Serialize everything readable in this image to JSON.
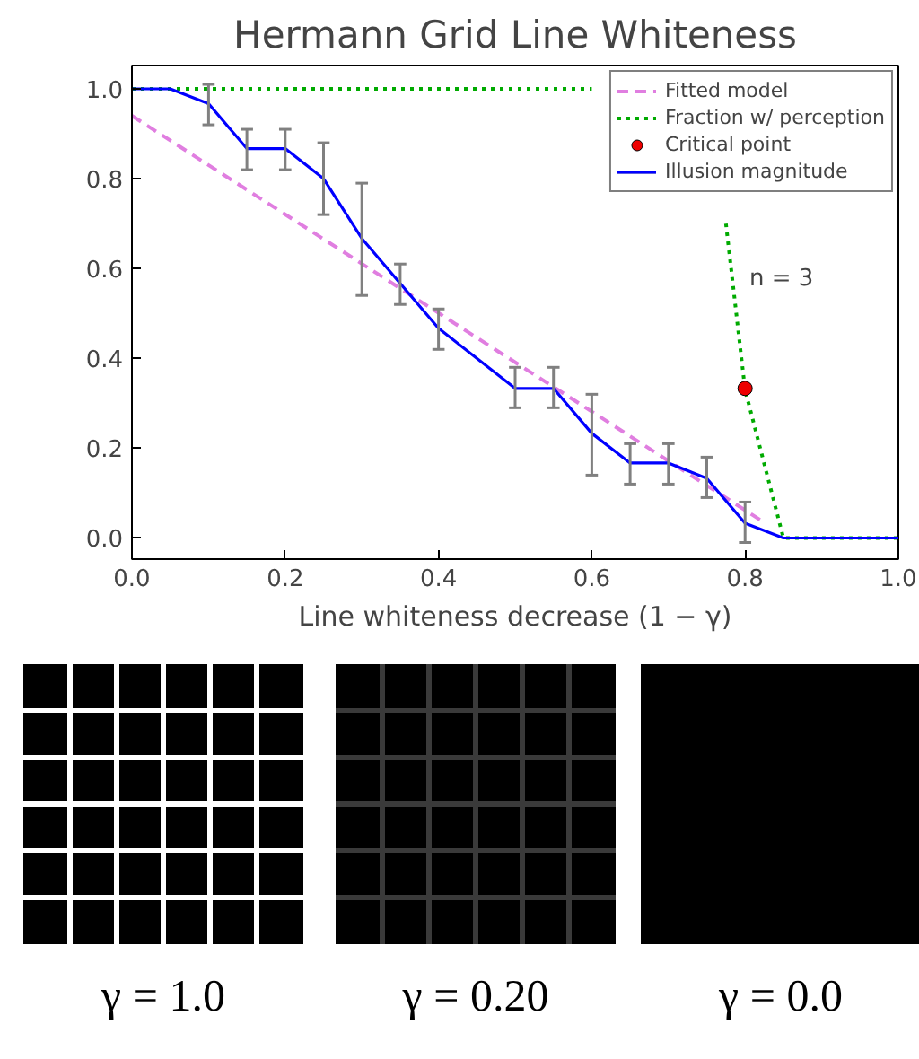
{
  "chart_data": {
    "type": "line",
    "title": "Hermann Grid Line Whiteness",
    "xlabel": "Line whiteness decrease (1 − γ)",
    "xlim": [
      0,
      1
    ],
    "ylim": [
      -0.047,
      1.052
    ],
    "xticks": [
      {
        "value": 0,
        "label": "0.0"
      },
      {
        "value": 0.2,
        "label": "0.2"
      },
      {
        "value": 0.4,
        "label": "0.4"
      },
      {
        "value": 0.6,
        "label": "0.6"
      },
      {
        "value": 0.8,
        "label": "0.8"
      },
      {
        "value": 1,
        "label": "1.0"
      }
    ],
    "yticks": [
      {
        "value": 0,
        "label": "0.0"
      },
      {
        "value": 0.2,
        "label": "0.2"
      },
      {
        "value": 0.4,
        "label": "0.4"
      },
      {
        "value": 0.6,
        "label": "0.6"
      },
      {
        "value": 0.8,
        "label": "0.8"
      },
      {
        "value": 1,
        "label": "1.0"
      }
    ],
    "grid": false,
    "legend": "top right",
    "series": [
      {
        "name": "Fitted model",
        "type": "line",
        "line_style": "dashed",
        "color": "#e07ee0",
        "x": [
          0,
          0.82
        ],
        "values": [
          0.94,
          0.04
        ]
      },
      {
        "name": "Fraction w/ perception",
        "type": "line",
        "line_style": "dotted",
        "color": "#00aa00",
        "x": [
          0,
          0.6,
          0.7,
          0.775,
          0.8,
          0.85,
          1.0
        ],
        "values": [
          1.0,
          1.0,
          null,
          0.7,
          0.33,
          0.0,
          0.0
        ]
      },
      {
        "name": "Critical point",
        "type": "scatter",
        "marker": "circle",
        "color": "#ee0000",
        "x": [
          0.8
        ],
        "values": [
          0.333
        ]
      },
      {
        "name": "Illusion magnitude",
        "type": "line",
        "line_style": "solid",
        "color": "#0000ff",
        "x": [
          0,
          0.05,
          0.1,
          0.15,
          0.2,
          0.25,
          0.3,
          0.35,
          0.4,
          0.45,
          0.5,
          0.55,
          0.6,
          0.65,
          0.7,
          0.75,
          0.8,
          0.85,
          0.9,
          0.95,
          1.0
        ],
        "values": [
          1.0,
          1.0,
          0.967,
          0.867,
          0.867,
          0.8,
          0.667,
          0.567,
          0.467,
          0.4,
          0.333,
          0.333,
          0.233,
          0.167,
          0.167,
          0.133,
          0.033,
          0.0,
          0.0,
          0.0,
          0.0
        ],
        "errors": [
          null,
          null,
          [
            0.92,
            1.01
          ],
          [
            0.82,
            0.91
          ],
          [
            0.82,
            0.91
          ],
          [
            0.72,
            0.88
          ],
          [
            0.54,
            0.79
          ],
          [
            0.52,
            0.61
          ],
          [
            0.42,
            0.51
          ],
          null,
          [
            0.29,
            0.38
          ],
          [
            0.29,
            0.38
          ],
          [
            0.14,
            0.32
          ],
          [
            0.12,
            0.21
          ],
          [
            0.12,
            0.21
          ],
          [
            0.09,
            0.18
          ],
          [
            -0.01,
            0.08
          ],
          null,
          null,
          null,
          null
        ]
      }
    ],
    "annotations": [
      "n = 3",
      "γ = 1.0",
      "γ = 0.20",
      "γ = 0.0"
    ]
  }
}
